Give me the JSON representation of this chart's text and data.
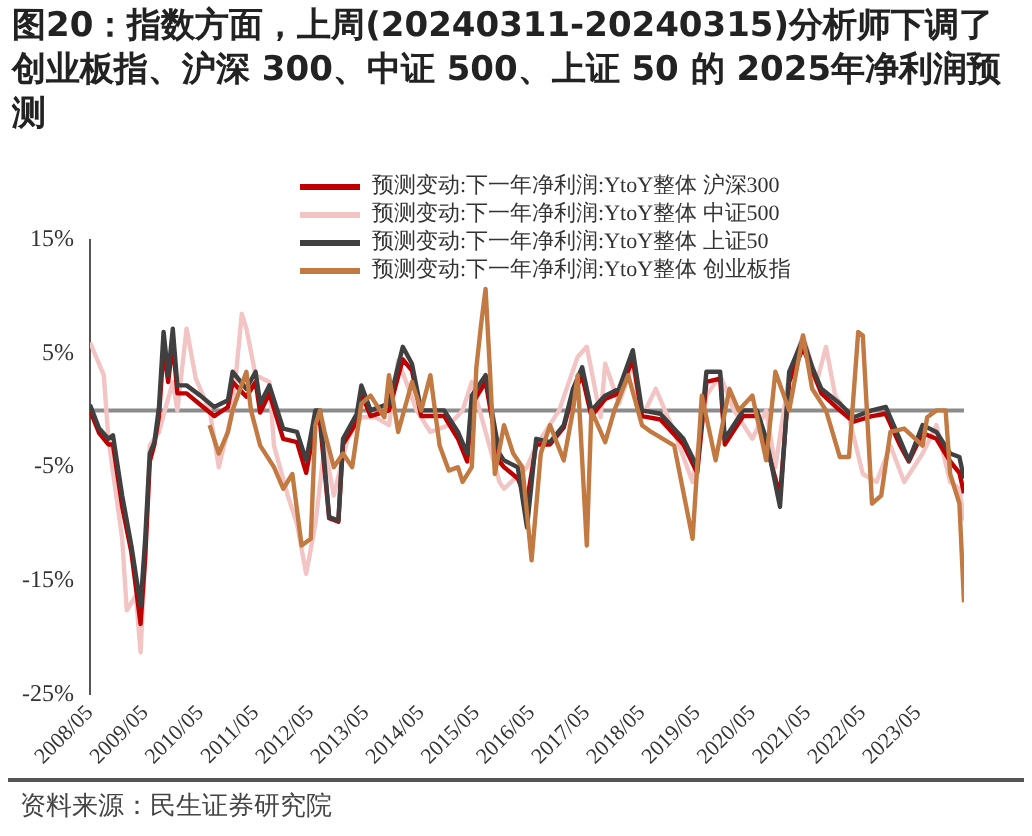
{
  "chart_data": {
    "type": "line",
    "title": "图20：指数方面，上周(20240311-20240315)分析师下调了创业板指、沪深 300、中证 500、上证 50 的 2025年净利润预测",
    "annotations": [
      "资料来源：民生证券研究院"
    ],
    "x": [
      "2008-05",
      "2008-07",
      "2008-09",
      "2008-10",
      "2008-12",
      "2009-02",
      "2009-04",
      "2009-05",
      "2009-06",
      "2009-07",
      "2009-08",
      "2009-09",
      "2009-10",
      "2009-11",
      "2009-12",
      "2010-02",
      "2010-05",
      "2010-08",
      "2010-11",
      "2010-12",
      "2011-03",
      "2011-05",
      "2011-06",
      "2011-08",
      "2011-11",
      "2012-02",
      "2012-04",
      "2012-06",
      "2012-07",
      "2012-09",
      "2012-11",
      "2012-12",
      "2013-03",
      "2013-04",
      "2013-06",
      "2013-10",
      "2014-01",
      "2014-03",
      "2014-05",
      "2014-10",
      "2015-01",
      "2015-03",
      "2015-04",
      "2015-07",
      "2015-10",
      "2015-11",
      "2016-02",
      "2016-04",
      "2016-06",
      "2016-09",
      "2016-12",
      "2017-02",
      "2017-04",
      "2017-06",
      "2017-09",
      "2017-12",
      "2018-03",
      "2018-05",
      "2018-09",
      "2019-02",
      "2019-05",
      "2019-07",
      "2019-10",
      "2019-11",
      "2020-03",
      "2020-06",
      "2020-08",
      "2020-11",
      "2021-01",
      "2021-04",
      "2021-06",
      "2021-08",
      "2021-12",
      "2022-03",
      "2022-07",
      "2022-10",
      "2023-01",
      "2023-03",
      "2023-06",
      "2023-09",
      "2023-12",
      "2024-02",
      "2024-03"
    ],
    "xlim": [
      "2008-05",
      "2024-03"
    ],
    "xticks": [
      {
        "value": "2008-05",
        "label": "2008/05"
      },
      {
        "value": "2009-05",
        "label": "2009/05"
      },
      {
        "value": "2010-05",
        "label": "2010/05"
      },
      {
        "value": "2011-05",
        "label": "2011/05"
      },
      {
        "value": "2012-05",
        "label": "2012/05"
      },
      {
        "value": "2013-05",
        "label": "2013/05"
      },
      {
        "value": "2014-05",
        "label": "2014/05"
      },
      {
        "value": "2015-05",
        "label": "2015/05"
      },
      {
        "value": "2016-05",
        "label": "2016/05"
      },
      {
        "value": "2017-05",
        "label": "2017/05"
      },
      {
        "value": "2018-05",
        "label": "2018/05"
      },
      {
        "value": "2019-05",
        "label": "2019/05"
      },
      {
        "value": "2020-05",
        "label": "2020/05"
      },
      {
        "value": "2021-05",
        "label": "2021/05"
      },
      {
        "value": "2022-05",
        "label": "2022/05"
      },
      {
        "value": "2023-05",
        "label": "2023/05"
      }
    ],
    "ylim": [
      -25,
      15
    ],
    "yticks": [
      {
        "value": -25,
        "label": "-25%"
      },
      {
        "value": -15,
        "label": "-15%"
      },
      {
        "value": -5,
        "label": "-5%"
      },
      {
        "value": 5,
        "label": "5%"
      },
      {
        "value": 15,
        "label": "15%"
      }
    ],
    "ref_lines": [
      {
        "axis": "y",
        "value": 0,
        "color": "#8c8c8c"
      }
    ],
    "grid": false,
    "legend": "top",
    "marker": "none",
    "line_style": "solid",
    "series": [
      {
        "name": "预测变动:下一年净利润:YtoY整体 沪深300",
        "color": "#c00000",
        "values": [
          0,
          -2,
          -3,
          -3,
          -8.5,
          -12.5,
          -18.8,
          -13,
          -4.5,
          -3,
          -0.5,
          5.5,
          2.5,
          6,
          1.5,
          1.5,
          0.5,
          -0.5,
          0.3,
          2.5,
          1.2,
          2.5,
          -0.2,
          1.5,
          -2.5,
          -2.8,
          -5.5,
          -1,
          -1,
          -9.5,
          -9.8,
          -3,
          -1,
          1.5,
          -0.5,
          0,
          4.5,
          3.5,
          -0.5,
          -0.5,
          -2.5,
          -4.5,
          0.5,
          2.5,
          -4.5,
          -5,
          -6,
          -8,
          -3,
          -3,
          -1.5,
          1.5,
          3,
          -0.5,
          1,
          1.5,
          4.5,
          -0.5,
          -0.8,
          -3,
          -5.5,
          2.5,
          2.8,
          -3,
          -0.5,
          -0.5,
          -3,
          -7.5,
          2.5,
          5.5,
          3.5,
          1.5,
          0,
          -1,
          -0.5,
          -0.3,
          -3,
          -4.5,
          -2,
          -2.5,
          -4.5,
          -5.5,
          -7.3
        ]
      },
      {
        "name": "预测变动:下一年净利润:YtoY整体 中证500",
        "color": "#f2c4c4",
        "x": [
          "2008-05",
          "2008-08",
          "2008-09",
          "2008-12",
          "2009-01",
          "2009-03",
          "2009-04",
          "2009-05",
          "2009-06",
          "2009-08",
          "2009-11",
          "2009-12",
          "2010-02",
          "2010-04",
          "2010-07",
          "2010-09",
          "2010-12",
          "2011-02",
          "2011-03",
          "2011-05",
          "2011-08",
          "2011-09",
          "2011-12",
          "2012-02",
          "2012-04",
          "2012-06",
          "2012-08",
          "2012-10",
          "2013-01",
          "2013-04",
          "2013-07",
          "2013-10",
          "2013-12",
          "2014-04",
          "2014-07",
          "2014-11",
          "2015-02",
          "2015-04",
          "2015-07",
          "2015-10",
          "2015-11",
          "2016-04",
          "2016-06",
          "2016-11",
          "2017-03",
          "2017-05",
          "2017-08",
          "2017-09",
          "2017-12",
          "2018-03",
          "2018-05",
          "2018-08",
          "2018-12",
          "2019-04",
          "2019-07",
          "2019-10",
          "2020-01",
          "2020-05",
          "2020-08",
          "2020-10",
          "2021-01",
          "2021-04",
          "2021-07",
          "2021-09",
          "2021-11",
          "2022-02",
          "2022-05",
          "2022-08",
          "2022-11",
          "2023-02",
          "2023-06",
          "2023-09",
          "2023-12",
          "2024-02",
          "2024-03"
        ],
        "values": [
          6,
          3.1,
          -2.5,
          -11.3,
          -17.6,
          -16.3,
          -21.3,
          -12.5,
          -3.1,
          -1.9,
          2.5,
          0,
          7.2,
          2.8,
          0,
          -5,
          0,
          8.5,
          7.2,
          3.1,
          2.5,
          -3.1,
          -7.5,
          -10,
          -14.4,
          -10,
          -3.1,
          -7.5,
          -2.5,
          -0.6,
          -0.6,
          -1.3,
          4.4,
          0,
          -1.9,
          -1.3,
          0,
          2.5,
          -1.9,
          -6.3,
          -6.9,
          -5,
          -3.1,
          0,
          4.7,
          5.6,
          -0.6,
          4.1,
          0.6,
          4.1,
          -0.6,
          1.9,
          -1.9,
          -6.3,
          1.3,
          3.1,
          0,
          -2.5,
          0,
          -5,
          3.1,
          6.6,
          2.5,
          5.6,
          1.3,
          -0.6,
          -5.6,
          -6.3,
          -3.1,
          -6.3,
          -3.8,
          -1.3,
          -6.3,
          -6.9,
          -9.7
        ]
      },
      {
        "name": "预测变动:下一年净利润:YtoY整体 上证50",
        "color": "#404040",
        "values": [
          0.5,
          -1.6,
          -2.5,
          -2.2,
          -7.5,
          -11.9,
          -17.2,
          -11.3,
          -3.8,
          -2.8,
          0.3,
          6.9,
          3.1,
          7.2,
          2.2,
          2.2,
          1.3,
          0.3,
          0.9,
          3.4,
          1.9,
          3.4,
          0.6,
          2.2,
          -1.6,
          -1.9,
          -4.4,
          0,
          0,
          -9.4,
          -9.7,
          -2.5,
          -0.3,
          2.2,
          0,
          0.6,
          5.6,
          4.1,
          0,
          0,
          -1.9,
          -3.8,
          1.3,
          3.1,
          -3.8,
          -4.4,
          -5,
          -10.3,
          -2.5,
          -2.8,
          -1.3,
          1.9,
          3.8,
          0,
          1.3,
          1.9,
          5.3,
          0,
          -0.3,
          -2.5,
          -5,
          3.4,
          3.4,
          -2.5,
          0,
          0,
          -2.5,
          -8.5,
          3.4,
          6.3,
          3.8,
          1.9,
          0.6,
          -0.6,
          0,
          0.3,
          -2.5,
          -4.4,
          -1.3,
          -1.9,
          -3.8,
          -4.1,
          -6
        ]
      },
      {
        "name": "预测变动:下一年净利润:YtoY整体 创业板指",
        "color": "#c27a42",
        "x": [
          "2010-07",
          "2010-09",
          "2010-11",
          "2010-12",
          "2011-03",
          "2011-04",
          "2011-06",
          "2011-09",
          "2011-11",
          "2012-01",
          "2012-03",
          "2012-05",
          "2012-06",
          "2012-07",
          "2012-08",
          "2012-10",
          "2012-12",
          "2013-02",
          "2013-04",
          "2013-06",
          "2013-09",
          "2013-10",
          "2013-12",
          "2014-03",
          "2014-05",
          "2014-07",
          "2014-09",
          "2014-11",
          "2015-01",
          "2015-02",
          "2015-04",
          "2015-05",
          "2015-06",
          "2015-07",
          "2015-08",
          "2015-09",
          "2015-11",
          "2016-01",
          "2016-03",
          "2016-05",
          "2016-07",
          "2016-09",
          "2016-12",
          "2017-02",
          "2017-03",
          "2017-05",
          "2017-06",
          "2017-09",
          "2017-11",
          "2018-02",
          "2018-05",
          "2018-07",
          "2018-12",
          "2019-04",
          "2019-06",
          "2019-09",
          "2019-12",
          "2020-02",
          "2020-05",
          "2020-08",
          "2020-10",
          "2021-01",
          "2021-04",
          "2021-06",
          "2021-09",
          "2021-12",
          "2022-02",
          "2022-04",
          "2022-05",
          "2022-07",
          "2022-09",
          "2022-11",
          "2023-02",
          "2023-06",
          "2023-07",
          "2023-09",
          "2023-11",
          "2023-12",
          "2024-02",
          "2024-03"
        ],
        "values": [
          -1.3,
          -3.8,
          -1.9,
          0,
          3.4,
          0,
          -3.1,
          -5,
          -6.9,
          -5.6,
          -11.9,
          -11.3,
          -1.3,
          0,
          -1.9,
          -5,
          -3.8,
          -5,
          0.6,
          1.3,
          -0.6,
          3.1,
          -1.9,
          2.5,
          0,
          3.1,
          -3.1,
          -5.3,
          -5,
          -6.3,
          -5,
          3.8,
          7.5,
          10.7,
          3.1,
          -5.6,
          -1.3,
          -3.8,
          -5,
          -13.2,
          -3.8,
          -1.3,
          -4.4,
          0,
          3.1,
          -11.9,
          0,
          -2.8,
          0,
          3.1,
          -1.3,
          -1.9,
          -3.1,
          -11.3,
          1.3,
          -4.4,
          1.9,
          0,
          1.3,
          -4.4,
          3.4,
          0,
          6.6,
          1.9,
          0,
          -4.1,
          -4.1,
          6.9,
          6.6,
          -8.2,
          -7.5,
          -1.9,
          -1.6,
          -3.1,
          -0.6,
          0,
          0,
          -5.6,
          -8.2,
          -16.9
        ]
      }
    ]
  }
}
